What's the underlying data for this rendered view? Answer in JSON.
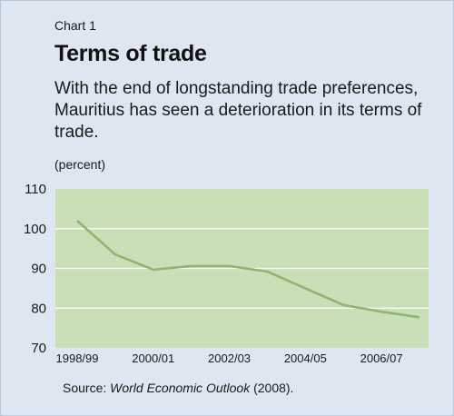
{
  "header": {
    "kicker": "Chart 1",
    "title": "Terms of trade",
    "subtitle": "With the end of longstanding trade preferences, Mauritius has seen a deterioration in its terms of trade."
  },
  "chart_data": {
    "type": "line",
    "unit_label": "(percent)",
    "x_tick_labels": [
      "1998/99",
      "2000/01",
      "2002/03",
      "2004/05",
      "2006/07"
    ],
    "series": [
      {
        "x": [
          "1998/99",
          "1999/00",
          "2000/01",
          "2001/02",
          "2002/03",
          "2003/04",
          "2004/05",
          "2005/06",
          "2006/07",
          "2007/08"
        ],
        "values": [
          102,
          93.5,
          89.7,
          90.6,
          90.6,
          89.2,
          85,
          80.8,
          79.1,
          77.7
        ]
      }
    ],
    "y_ticks": [
      70,
      80,
      90,
      100,
      110
    ],
    "ylim": [
      70,
      110
    ],
    "grid": true,
    "colors": {
      "plot_background": "#c9dfb8",
      "gridline": "#ffffff",
      "line": "#8fb56e",
      "panel_background": "#dde6f1"
    }
  },
  "source": {
    "prefix": "Source: ",
    "publication": "World Economic Outlook",
    "suffix": " (2008)."
  }
}
